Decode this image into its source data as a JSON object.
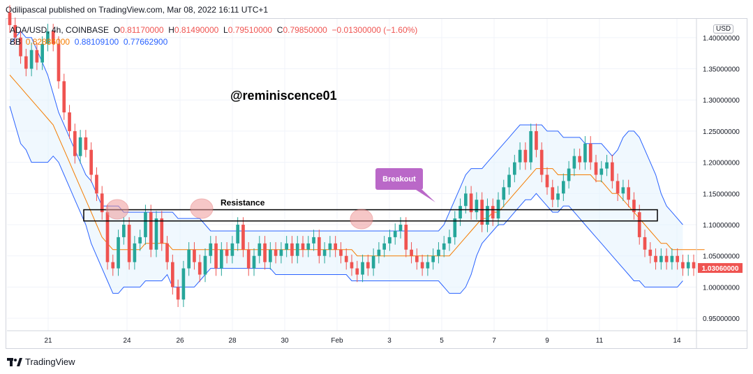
{
  "header": {
    "published": "Odilipascal published on TradingView.com, Mar 08, 2022 16:11 UTC+1"
  },
  "legend": {
    "symbol": "ADA/USD, 4h, COINBASE",
    "o_label": "O",
    "o_value": "0.81170000",
    "h_label": "H",
    "h_value": "0.81490000",
    "l_label": "L",
    "l_value": "0.79510000",
    "c_label": "C",
    "c_value": "0.79850000",
    "change": "−0.01300000 (−1.60%)",
    "bb_label": "BB",
    "bb_basis": "0.82886000",
    "bb_upper": "0.88109100",
    "bb_lower": "0.77662900"
  },
  "currency_badge": "USD",
  "footer": {
    "brand": "TradingView",
    "logo_icon": "tradingview-logo-icon"
  },
  "colors": {
    "up": "#26a69a",
    "down": "#ef5350",
    "basis": "#f57c00",
    "band": "#2962ff",
    "band_fill": "#e3f2fd",
    "annotation": "#000000",
    "breakout_bg": "#ba68c8",
    "price_tag": "#ef5350",
    "circle": "#ef9a9a"
  },
  "chart_data": {
    "type": "candlestick",
    "symbol": "ADA/USD",
    "interval": "4h",
    "exchange": "COINBASE",
    "price_axis": [
      "1.40000000",
      "1.35000000",
      "1.30000000",
      "1.25000000",
      "1.20000000",
      "1.15000000",
      "1.10000000",
      "1.05000000",
      "1.00000000",
      "0.95000000"
    ],
    "ylim": [
      0.93,
      1.43
    ],
    "time_axis": [
      "21",
      "24",
      "26",
      "28",
      "30",
      "Feb",
      "3",
      "5",
      "7",
      "9",
      "11",
      "14"
    ],
    "last_price": "1.03060000",
    "closes": [
      1.42,
      1.4,
      1.37,
      1.35,
      1.38,
      1.36,
      1.39,
      1.41,
      1.39,
      1.33,
      1.28,
      1.25,
      1.21,
      1.24,
      1.22,
      1.18,
      1.15,
      1.12,
      1.04,
      1.03,
      1.08,
      1.1,
      1.04,
      1.07,
      1.08,
      1.12,
      1.06,
      1.11,
      1.07,
      1.04,
      1.0,
      0.98,
      1.03,
      1.06,
      1.04,
      1.02,
      1.05,
      1.07,
      1.03,
      1.06,
      1.05,
      1.07,
      1.1,
      1.06,
      1.03,
      1.05,
      1.07,
      1.04,
      1.06,
      1.05,
      1.06,
      1.07,
      1.05,
      1.07,
      1.06,
      1.07,
      1.08,
      1.05,
      1.06,
      1.07,
      1.06,
      1.05,
      1.04,
      1.03,
      1.02,
      1.04,
      1.03,
      1.05,
      1.06,
      1.07,
      1.08,
      1.09,
      1.1,
      1.06,
      1.05,
      1.04,
      1.03,
      1.04,
      1.05,
      1.06,
      1.07,
      1.08,
      1.11,
      1.13,
      1.15,
      1.12,
      1.14,
      1.1,
      1.13,
      1.11,
      1.14,
      1.16,
      1.18,
      1.2,
      1.22,
      1.2,
      1.25,
      1.22,
      1.18,
      1.16,
      1.14,
      1.15,
      1.17,
      1.19,
      1.21,
      1.2,
      1.23,
      1.2,
      1.18,
      1.19,
      1.2,
      1.17,
      1.15,
      1.16,
      1.14,
      1.12,
      1.08,
      1.06,
      1.05,
      1.04,
      1.05,
      1.04,
      1.05,
      1.04,
      1.03,
      1.04,
      1.03
    ],
    "bb_basis": [
      1.34,
      1.33,
      1.32,
      1.31,
      1.3,
      1.29,
      1.28,
      1.27,
      1.26,
      1.24,
      1.22,
      1.2,
      1.18,
      1.16,
      1.14,
      1.12,
      1.1,
      1.08,
      1.07,
      1.06,
      1.06,
      1.06,
      1.06,
      1.06,
      1.06,
      1.07,
      1.07,
      1.07,
      1.07,
      1.07,
      1.06,
      1.06,
      1.06,
      1.06,
      1.06,
      1.06,
      1.06,
      1.06,
      1.06,
      1.06,
      1.06,
      1.06,
      1.06,
      1.06,
      1.06,
      1.06,
      1.06,
      1.06,
      1.06,
      1.06,
      1.06,
      1.06,
      1.06,
      1.06,
      1.06,
      1.06,
      1.06,
      1.06,
      1.06,
      1.06,
      1.06,
      1.06,
      1.06,
      1.06,
      1.05,
      1.05,
      1.05,
      1.05,
      1.05,
      1.05,
      1.05,
      1.05,
      1.05,
      1.05,
      1.05,
      1.05,
      1.05,
      1.05,
      1.05,
      1.05,
      1.05,
      1.05,
      1.06,
      1.07,
      1.08,
      1.09,
      1.1,
      1.11,
      1.11,
      1.12,
      1.12,
      1.13,
      1.14,
      1.15,
      1.16,
      1.17,
      1.18,
      1.19,
      1.19,
      1.19,
      1.19,
      1.18,
      1.18,
      1.18,
      1.18,
      1.18,
      1.18,
      1.18,
      1.17,
      1.17,
      1.16,
      1.15,
      1.15,
      1.14,
      1.13,
      1.12,
      1.11,
      1.1,
      1.09,
      1.08,
      1.07,
      1.07,
      1.06,
      1.06,
      1.06,
      1.06,
      1.06,
      1.06,
      1.06
    ],
    "bb_upper": [
      1.39,
      1.4,
      1.41,
      1.4,
      1.4,
      1.38,
      1.36,
      1.34,
      1.31,
      1.28,
      1.26,
      1.24,
      1.22,
      1.2,
      1.18,
      1.17,
      1.15,
      1.13,
      1.13,
      1.13,
      1.13,
      1.12,
      1.12,
      1.12,
      1.12,
      1.12,
      1.12,
      1.12,
      1.12,
      1.12,
      1.12,
      1.11,
      1.11,
      1.11,
      1.11,
      1.11,
      1.1,
      1.09,
      1.09,
      1.09,
      1.09,
      1.09,
      1.09,
      1.09,
      1.09,
      1.09,
      1.09,
      1.09,
      1.09,
      1.09,
      1.09,
      1.09,
      1.09,
      1.09,
      1.09,
      1.09,
      1.09,
      1.09,
      1.09,
      1.09,
      1.09,
      1.09,
      1.09,
      1.09,
      1.09,
      1.09,
      1.09,
      1.09,
      1.09,
      1.09,
      1.09,
      1.09,
      1.09,
      1.09,
      1.09,
      1.09,
      1.09,
      1.09,
      1.09,
      1.09,
      1.1,
      1.12,
      1.14,
      1.16,
      1.18,
      1.19,
      1.19,
      1.19,
      1.2,
      1.21,
      1.22,
      1.23,
      1.24,
      1.25,
      1.26,
      1.26,
      1.26,
      1.26,
      1.26,
      1.25,
      1.25,
      1.25,
      1.24,
      1.24,
      1.24,
      1.24,
      1.23,
      1.23,
      1.23,
      1.23,
      1.22,
      1.21,
      1.22,
      1.24,
      1.25,
      1.25,
      1.24,
      1.22,
      1.2,
      1.18,
      1.15,
      1.13,
      1.12,
      1.11,
      1.1
    ],
    "bb_lower": [
      1.29,
      1.26,
      1.23,
      1.22,
      1.2,
      1.2,
      1.2,
      1.2,
      1.21,
      1.2,
      1.18,
      1.16,
      1.14,
      1.12,
      1.1,
      1.07,
      1.05,
      1.03,
      1.01,
      0.99,
      0.99,
      1.0,
      1.0,
      1.0,
      1.0,
      1.01,
      1.01,
      1.01,
      1.01,
      1.02,
      1.0,
      1.0,
      1.0,
      1.0,
      1.0,
      1.01,
      1.02,
      1.03,
      1.03,
      1.03,
      1.03,
      1.03,
      1.03,
      1.03,
      1.03,
      1.03,
      1.03,
      1.03,
      1.03,
      1.02,
      1.02,
      1.02,
      1.02,
      1.02,
      1.02,
      1.02,
      1.02,
      1.02,
      1.02,
      1.02,
      1.02,
      1.02,
      1.02,
      1.01,
      1.01,
      1.01,
      1.01,
      1.01,
      1.01,
      1.01,
      1.01,
      1.01,
      1.01,
      1.01,
      1.01,
      1.01,
      1.01,
      1.01,
      1.01,
      1.01,
      1.0,
      0.99,
      0.99,
      0.99,
      1.0,
      1.02,
      1.05,
      1.07,
      1.08,
      1.09,
      1.1,
      1.1,
      1.11,
      1.12,
      1.13,
      1.14,
      1.14,
      1.15,
      1.14,
      1.13,
      1.12,
      1.12,
      1.13,
      1.13,
      1.12,
      1.11,
      1.1,
      1.09,
      1.08,
      1.07,
      1.06,
      1.05,
      1.04,
      1.03,
      1.02,
      1.01,
      1.01,
      1.0,
      1.0,
      1.0,
      1.0,
      1.0,
      1.0,
      1.0,
      1.01
    ],
    "annotations": {
      "watermark": "@reminiscence01",
      "resistance_label": "Resistance",
      "resistance_zone": [
        1.106,
        1.124
      ],
      "breakout_label": "Breakout"
    }
  }
}
